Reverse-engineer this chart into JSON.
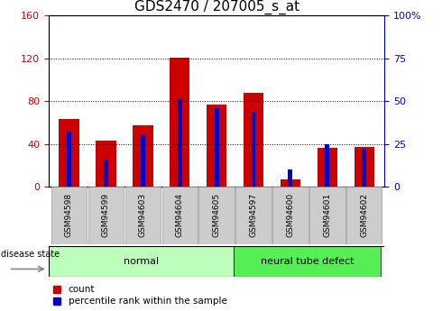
{
  "title": "GDS2470 / 207005_s_at",
  "samples": [
    "GSM94598",
    "GSM94599",
    "GSM94603",
    "GSM94604",
    "GSM94605",
    "GSM94597",
    "GSM94600",
    "GSM94601",
    "GSM94602"
  ],
  "count_values": [
    63,
    43,
    57,
    121,
    77,
    88,
    7,
    36,
    37
  ],
  "percentile_values": [
    32,
    16,
    30,
    51,
    46,
    44,
    10,
    25,
    22
  ],
  "groups": [
    {
      "label": "normal",
      "start": 0,
      "end": 5,
      "color": "#bbffbb"
    },
    {
      "label": "neural tube defect",
      "start": 5,
      "end": 9,
      "color": "#55ee55"
    }
  ],
  "red_bar_width": 0.55,
  "blue_bar_width": 0.12,
  "count_color": "#cc0000",
  "percentile_color": "#0000cc",
  "left_ylim": [
    0,
    160
  ],
  "right_ylim": [
    0,
    100
  ],
  "left_yticks": [
    0,
    40,
    80,
    120,
    160
  ],
  "right_yticks": [
    0,
    25,
    50,
    75,
    100
  ],
  "left_ylabel_color": "#cc0000",
  "right_ylabel_color": "#0000cc",
  "grid_color": "#000000",
  "disease_state_label": "disease state",
  "legend_count_label": "count",
  "legend_percentile_label": "percentile rank within the sample",
  "tick_fontsize": 8,
  "title_fontsize": 11
}
